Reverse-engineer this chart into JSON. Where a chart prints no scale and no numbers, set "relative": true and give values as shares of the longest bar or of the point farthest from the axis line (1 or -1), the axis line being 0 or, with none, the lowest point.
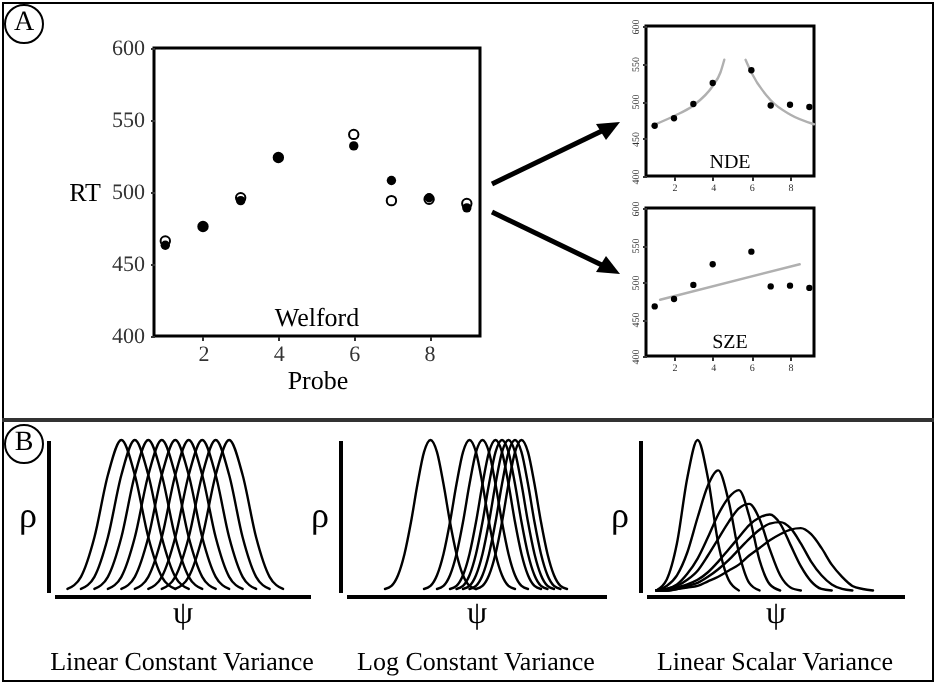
{
  "chart_data": [
    {
      "type": "scatter",
      "xlabel": "Probe",
      "ylabel": "RT",
      "xlim": [
        0.7,
        9.35
      ],
      "ylim": [
        400,
        600
      ],
      "xticks": [
        2,
        4,
        6,
        8
      ],
      "yticks": [
        400,
        450,
        500,
        550,
        600
      ],
      "marker": "circle",
      "annotations": [
        "A",
        "Welford"
      ],
      "x": [
        1,
        2,
        3,
        4,
        6,
        7,
        8,
        9
      ],
      "series": [
        {
          "color": "#000000",
          "values": [
            463,
            476,
            494,
            524,
            532,
            508,
            496,
            489
          ]
        },
        {
          "color": "#000000",
          "values": [
            466,
            476,
            496,
            524,
            540,
            494,
            495,
            492
          ]
        }
      ]
    },
    {
      "type": "scatter",
      "xlim": [
        0.55,
        9.24
      ],
      "ylim": [
        400,
        600
      ],
      "xticks": [
        2,
        4,
        6,
        8
      ],
      "yticks": [
        400,
        450,
        500,
        550,
        600
      ],
      "marker": "circle",
      "annotations": [
        "NDE"
      ],
      "x": [
        1,
        2,
        3,
        4,
        6,
        7,
        8,
        9
      ],
      "series": [
        {
          "type": "line",
          "marker": "none",
          "color": "#b0b0b0",
          "x": [
            0.86,
            2,
            3,
            4,
            4.4,
            4.6
          ],
          "values": [
            467,
            480,
            494,
            520,
            538,
            555
          ]
        },
        {
          "type": "line",
          "marker": "none",
          "color": "#b0b0b0",
          "x": [
            5.7,
            6,
            7,
            8,
            9.24
          ],
          "values": [
            555,
            538,
            501,
            482,
            469
          ]
        },
        {
          "color": "#000000",
          "values": [
            467,
            477,
            496,
            524,
            541,
            494,
            495,
            492
          ]
        }
      ]
    },
    {
      "type": "scatter",
      "xlim": [
        0.55,
        9.24
      ],
      "ylim": [
        400,
        600
      ],
      "xticks": [
        2,
        4,
        6,
        8
      ],
      "yticks": [
        400,
        450,
        500,
        550,
        600
      ],
      "marker": "circle",
      "annotations": [
        "SZE"
      ],
      "x": [
        1,
        2,
        3,
        4,
        6,
        7,
        8,
        9
      ],
      "series": [
        {
          "type": "line",
          "marker": "none",
          "color": "#b0b0b0",
          "x": [
            1.28,
            8.5
          ],
          "values": [
            476,
            524
          ]
        },
        {
          "color": "#000000",
          "values": [
            467,
            477,
            496,
            524,
            541,
            494,
            495,
            492
          ]
        }
      ]
    },
    {
      "type": "line",
      "relative": true,
      "title": "Linear Constant Variance",
      "xlabel": "ψ",
      "ylabel": "ρ",
      "annotations": [
        "B"
      ],
      "categories": [
        null,
        null,
        null,
        null,
        null,
        null,
        null,
        null,
        null,
        null,
        null,
        null,
        null,
        null,
        null,
        null,
        null,
        null,
        null,
        null
      ],
      "series": [
        {
          "color": "#000000",
          "values": [
            null,
            0.02,
            0.1,
            0.36,
            0.77,
            1,
            0.77,
            0.36,
            0.1,
            0.02,
            null,
            null,
            null,
            null,
            null,
            null,
            null,
            null,
            null,
            null
          ]
        },
        {
          "color": "#000000",
          "values": [
            null,
            null,
            0.02,
            0.1,
            0.36,
            0.77,
            1,
            0.77,
            0.36,
            0.1,
            0.02,
            null,
            null,
            null,
            null,
            null,
            null,
            null,
            null,
            null
          ]
        },
        {
          "color": "#000000",
          "values": [
            null,
            null,
            null,
            0.02,
            0.1,
            0.36,
            0.77,
            1,
            0.77,
            0.36,
            0.1,
            0.02,
            null,
            null,
            null,
            null,
            null,
            null,
            null,
            null
          ]
        },
        {
          "color": "#000000",
          "values": [
            null,
            null,
            null,
            null,
            0.02,
            0.1,
            0.36,
            0.77,
            1,
            0.77,
            0.36,
            0.1,
            0.02,
            null,
            null,
            null,
            null,
            null,
            null,
            null
          ]
        },
        {
          "color": "#000000",
          "values": [
            null,
            null,
            null,
            null,
            null,
            0.02,
            0.1,
            0.36,
            0.77,
            1,
            0.77,
            0.36,
            0.1,
            0.02,
            null,
            null,
            null,
            null,
            null,
            null
          ]
        },
        {
          "color": "#000000",
          "values": [
            null,
            null,
            null,
            null,
            null,
            null,
            0.02,
            0.1,
            0.36,
            0.77,
            1,
            0.77,
            0.36,
            0.1,
            0.02,
            null,
            null,
            null,
            null,
            null
          ]
        },
        {
          "color": "#000000",
          "values": [
            null,
            null,
            null,
            null,
            null,
            null,
            null,
            0.02,
            0.1,
            0.36,
            0.77,
            1,
            0.77,
            0.36,
            0.1,
            0.02,
            null,
            null,
            null,
            null
          ]
        },
        {
          "color": "#000000",
          "values": [
            null,
            null,
            null,
            null,
            null,
            null,
            null,
            null,
            0.02,
            0.1,
            0.36,
            0.77,
            1,
            0.77,
            0.36,
            0.1,
            0.02,
            null,
            null,
            null
          ]
        },
        {
          "color": "#000000",
          "values": [
            null,
            null,
            null,
            null,
            null,
            null,
            null,
            null,
            null,
            0.02,
            0.1,
            0.36,
            0.77,
            1,
            0.77,
            0.36,
            0.1,
            0.02,
            null,
            null
          ]
        }
      ]
    },
    {
      "type": "line",
      "relative": true,
      "title": "Log Constant Variance",
      "xlabel": "ψ",
      "ylabel": "ρ",
      "categories": [
        null,
        null,
        null,
        null,
        null,
        null,
        null,
        null,
        null,
        null,
        null,
        null,
        null,
        null,
        null,
        null,
        null,
        null,
        null,
        null,
        null,
        null,
        null,
        null,
        null,
        null,
        null,
        null,
        null,
        null,
        null,
        null,
        null,
        null,
        null,
        null,
        null,
        null,
        null,
        null,
        null
      ],
      "series": [
        {
          "color": "#000000",
          "values": [
            null,
            null,
            null,
            null,
            null,
            null,
            0.02,
            0.04,
            0.11,
            0.25,
            0.46,
            0.71,
            0.92,
            1,
            0.92,
            0.71,
            0.46,
            0.25,
            0.11,
            0.04,
            0.02,
            null,
            null,
            null,
            null,
            null,
            null,
            null,
            null,
            null,
            null,
            null,
            null,
            null,
            null,
            null,
            null,
            null,
            null,
            null,
            null
          ]
        },
        {
          "color": "#000000",
          "values": [
            null,
            null,
            null,
            null,
            null,
            null,
            null,
            null,
            null,
            null,
            null,
            null,
            0.02,
            0.04,
            0.11,
            0.25,
            0.46,
            0.71,
            0.92,
            1,
            0.92,
            0.71,
            0.46,
            0.25,
            0.11,
            0.04,
            0.02,
            null,
            null,
            null,
            null,
            null,
            null,
            null,
            null,
            null,
            null,
            null,
            null,
            null,
            null
          ]
        },
        {
          "color": "#000000",
          "values": [
            null,
            null,
            null,
            null,
            null,
            null,
            null,
            null,
            null,
            null,
            null,
            null,
            null,
            null,
            0.02,
            0.04,
            0.11,
            0.25,
            0.46,
            0.71,
            0.92,
            1,
            0.92,
            0.71,
            0.46,
            0.25,
            0.11,
            0.04,
            0.02,
            null,
            null,
            null,
            null,
            null,
            null,
            null,
            null,
            null,
            null,
            null,
            null
          ]
        },
        {
          "color": "#000000",
          "values": [
            null,
            null,
            null,
            null,
            null,
            null,
            null,
            null,
            null,
            null,
            null,
            null,
            null,
            null,
            null,
            null,
            0.02,
            0.04,
            0.11,
            0.25,
            0.46,
            0.71,
            0.92,
            1,
            0.92,
            0.71,
            0.46,
            0.25,
            0.11,
            0.04,
            0.02,
            null,
            null,
            null,
            null,
            null,
            null,
            null,
            null,
            null,
            null
          ]
        },
        {
          "color": "#000000",
          "values": [
            null,
            null,
            null,
            null,
            null,
            null,
            null,
            null,
            null,
            null,
            null,
            null,
            null,
            null,
            null,
            null,
            null,
            0.02,
            0.04,
            0.11,
            0.25,
            0.46,
            0.71,
            0.92,
            1,
            0.92,
            0.71,
            0.46,
            0.25,
            0.11,
            0.04,
            0.02,
            null,
            null,
            null,
            null,
            null,
            null,
            null,
            null,
            null
          ]
        },
        {
          "color": "#000000",
          "values": [
            null,
            null,
            null,
            null,
            null,
            null,
            null,
            null,
            null,
            null,
            null,
            null,
            null,
            null,
            null,
            null,
            null,
            null,
            0.02,
            0.04,
            0.11,
            0.25,
            0.46,
            0.71,
            0.92,
            1,
            0.92,
            0.71,
            0.46,
            0.25,
            0.11,
            0.04,
            0.02,
            null,
            null,
            null,
            null,
            null,
            null,
            null,
            null
          ]
        },
        {
          "color": "#000000",
          "values": [
            null,
            null,
            null,
            null,
            null,
            null,
            null,
            null,
            null,
            null,
            null,
            null,
            null,
            null,
            null,
            null,
            null,
            null,
            null,
            0.02,
            0.04,
            0.11,
            0.25,
            0.46,
            0.71,
            0.92,
            1,
            0.92,
            0.71,
            0.46,
            0.25,
            0.11,
            0.04,
            0.02,
            null,
            null,
            null,
            null,
            null,
            null,
            null
          ]
        },
        {
          "color": "#000000",
          "values": [
            null,
            null,
            null,
            null,
            null,
            null,
            null,
            null,
            null,
            null,
            null,
            null,
            null,
            null,
            null,
            null,
            null,
            null,
            null,
            null,
            0.02,
            0.04,
            0.11,
            0.25,
            0.46,
            0.71,
            0.92,
            1,
            0.92,
            0.71,
            0.46,
            0.25,
            0.11,
            0.04,
            0.02,
            null,
            null,
            null,
            null,
            null,
            null
          ]
        }
      ]
    },
    {
      "type": "line",
      "relative": true,
      "title": "Linear Scalar Variance",
      "xlabel": "ψ",
      "ylabel": "ρ",
      "categories": [
        null,
        null,
        null,
        null,
        null,
        null,
        null,
        null,
        null,
        null,
        null,
        null,
        null,
        null,
        null,
        null,
        null,
        null,
        null,
        null,
        null,
        null,
        null,
        null,
        null,
        null
      ],
      "series": [
        {
          "color": "#000000",
          "values": [
            null,
            0.01,
            0.08,
            0.32,
            0.75,
            1,
            0.75,
            0.32,
            0.08,
            0.01,
            null,
            null,
            null,
            null,
            null,
            null,
            null,
            null,
            null,
            null,
            null,
            null,
            null,
            null,
            null,
            null
          ]
        },
        {
          "color": "#000000",
          "values": [
            null,
            0.01,
            0.04,
            0.11,
            0.26,
            0.49,
            0.7,
            0.8,
            0.6,
            0.26,
            0.06,
            0.01,
            null,
            null,
            null,
            null,
            null,
            null,
            null,
            null,
            null,
            null,
            null,
            null,
            null,
            null
          ]
        },
        {
          "color": "#000000",
          "values": [
            null,
            0.01,
            0.02,
            0.05,
            0.12,
            0.22,
            0.36,
            0.51,
            0.62,
            0.67,
            0.5,
            0.21,
            0.05,
            0.01,
            null,
            null,
            null,
            null,
            null,
            null,
            null,
            null,
            null,
            null,
            null,
            null
          ]
        },
        {
          "color": "#000000",
          "values": [
            null,
            0.01,
            0.02,
            0.04,
            0.08,
            0.14,
            0.24,
            0.35,
            0.46,
            0.55,
            0.58,
            0.48,
            0.28,
            0.11,
            0.03,
            0.01,
            null,
            null,
            null,
            null,
            null,
            null,
            null,
            null,
            null,
            null
          ]
        },
        {
          "color": "#000000",
          "values": [
            null,
            0.01,
            0.01,
            0.03,
            0.05,
            0.08,
            0.13,
            0.2,
            0.28,
            0.36,
            0.44,
            0.49,
            0.51,
            0.45,
            0.31,
            0.17,
            0.07,
            0.02,
            0.01,
            null,
            null,
            null,
            null,
            null,
            null,
            null
          ]
        },
        {
          "color": "#000000",
          "values": [
            null,
            0.01,
            0.01,
            0.02,
            0.04,
            0.06,
            0.1,
            0.15,
            0.21,
            0.28,
            0.35,
            0.41,
            0.45,
            0.46,
            0.42,
            0.32,
            0.2,
            0.11,
            0.05,
            0.02,
            0.01,
            null,
            null,
            null,
            null,
            null
          ]
        },
        {
          "color": "#000000",
          "values": [
            null,
            0.01,
            0.01,
            0.02,
            0.03,
            0.04,
            0.07,
            0.1,
            0.14,
            0.18,
            0.24,
            0.29,
            0.34,
            0.38,
            0.41,
            0.42,
            0.38,
            0.29,
            0.18,
            0.1,
            0.04,
            0.02,
            0.01,
            null,
            null,
            null
          ]
        }
      ]
    }
  ]
}
